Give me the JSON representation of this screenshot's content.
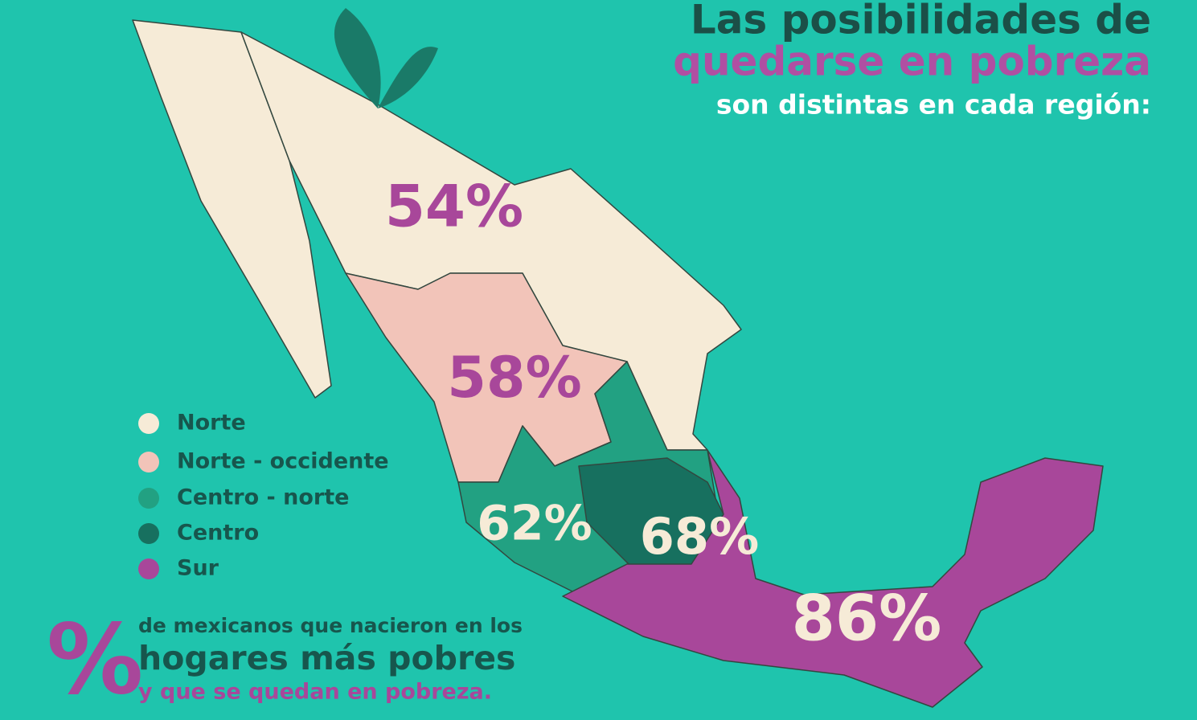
{
  "title": {
    "line1": "Las posibilidades de",
    "line2": "quedarse en pobreza",
    "line3": "son distintas en cada región:"
  },
  "legend": [
    {
      "label": "Norte",
      "color": "#f6ebd7"
    },
    {
      "label": "Norte - occidente",
      "color": "#f2c4b9"
    },
    {
      "label": "Centro - norte",
      "color": "#22a182"
    },
    {
      "label": "Centro",
      "color": "#17705f"
    },
    {
      "label": "Sur",
      "color": "#a8479a"
    }
  ],
  "map_labels": [
    {
      "text": "54%",
      "color": "#a8479a"
    },
    {
      "text": "58%",
      "color": "#a8479a"
    },
    {
      "text": "62%",
      "color": "#f6ebd7"
    },
    {
      "text": "68%",
      "color": "#f6ebd7"
    },
    {
      "text": "86%",
      "color": "#f6ebd7"
    }
  ],
  "footer": {
    "symbol": "%",
    "line1": "de mexicanos que nacieron en los",
    "line2": "hogares más pobres",
    "line3": "y que se quedan en pobreza."
  }
}
